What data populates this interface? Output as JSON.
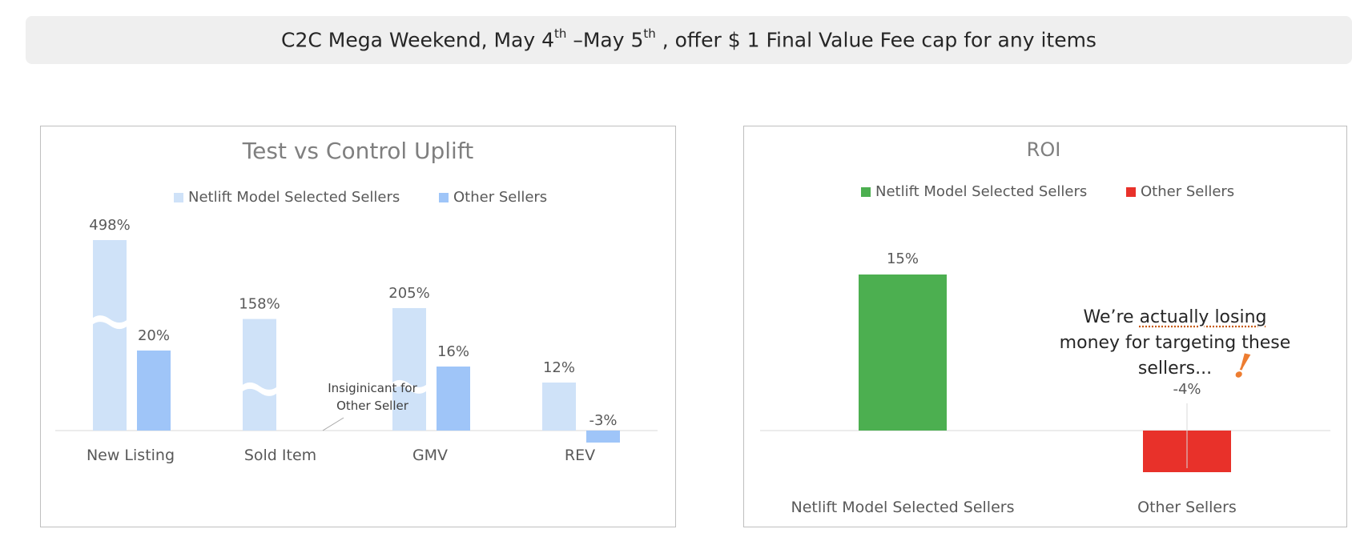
{
  "banner": {
    "part1": "C2C Mega Weekend, May 4",
    "sup1": "th",
    "part2": " –May 5",
    "sup2": "th",
    "part3": " , offer $ 1 Final Value Fee cap for any items"
  },
  "chart_data": [
    {
      "type": "bar",
      "title": "Test vs Control Uplift",
      "categories": [
        "New Listing",
        "Sold Item",
        "GMV",
        "REV"
      ],
      "series": [
        {
          "name": "Netlift Model Selected Sellers",
          "values": [
            498,
            158,
            205,
            12
          ],
          "labels": [
            "498%",
            "158%",
            "205%",
            "12%"
          ],
          "color": "#cfe2f8"
        },
        {
          "name": "Other Sellers",
          "values": [
            20,
            null,
            16,
            -3
          ],
          "labels": [
            "20%",
            "",
            "16%",
            "-3%"
          ],
          "color": "#9fc5f8"
        }
      ],
      "axis_break": true,
      "legend": "top",
      "grid": false,
      "annotation": "Insiginicant for Other Seller"
    },
    {
      "type": "bar",
      "title": "ROI",
      "categories": [
        "Netlift Model Selected Sellers",
        "Other Sellers"
      ],
      "series": [
        {
          "name": "Netlift Model Selected Sellers",
          "values": [
            15,
            null
          ],
          "labels": [
            "15%",
            ""
          ],
          "color": "#4caf50"
        },
        {
          "name": "Other Sellers",
          "values": [
            null,
            -4
          ],
          "labels": [
            "",
            "-4%"
          ],
          "color": "#e8312a"
        }
      ],
      "legend": "top",
      "grid": false,
      "annotation": {
        "before": "We’re ",
        "underlined": "actually losing",
        "after": " money for targeting these sellers...",
        "mark": "!"
      }
    }
  ]
}
